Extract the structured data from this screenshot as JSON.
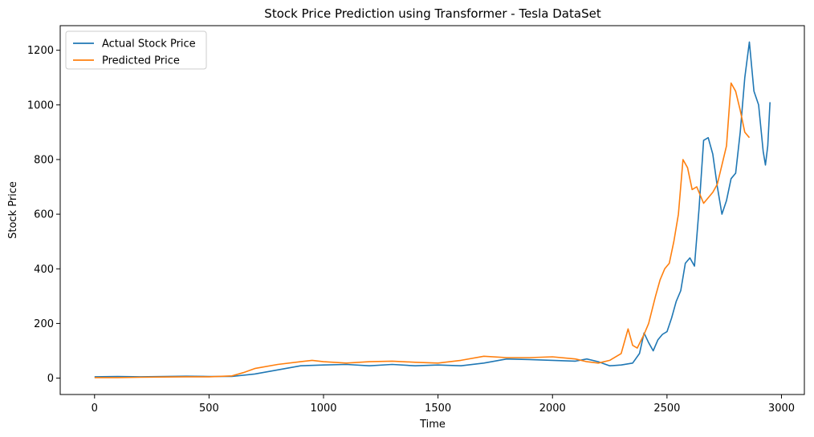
{
  "chart_data": {
    "type": "line",
    "title": "Stock Price Prediction using Transformer - Tesla DataSet",
    "xlabel": "Time",
    "ylabel": "Stock Price",
    "xlim": [
      -150,
      3100
    ],
    "ylim": [
      -60,
      1290
    ],
    "xticks": [
      0,
      500,
      1000,
      1500,
      2000,
      2500,
      3000
    ],
    "yticks": [
      0,
      200,
      400,
      600,
      800,
      1000,
      1200
    ],
    "grid": false,
    "legend_position": "top-left",
    "series": [
      {
        "name": "Actual Stock Price",
        "color": "#1f77b4",
        "points": [
          [
            0,
            5
          ],
          [
            100,
            6
          ],
          [
            200,
            5
          ],
          [
            300,
            6
          ],
          [
            400,
            7
          ],
          [
            500,
            6
          ],
          [
            600,
            6
          ],
          [
            700,
            15
          ],
          [
            800,
            30
          ],
          [
            900,
            45
          ],
          [
            1000,
            48
          ],
          [
            1100,
            50
          ],
          [
            1200,
            45
          ],
          [
            1300,
            50
          ],
          [
            1400,
            45
          ],
          [
            1500,
            48
          ],
          [
            1600,
            45
          ],
          [
            1700,
            55
          ],
          [
            1800,
            70
          ],
          [
            1900,
            68
          ],
          [
            2000,
            65
          ],
          [
            2100,
            62
          ],
          [
            2150,
            70
          ],
          [
            2200,
            60
          ],
          [
            2250,
            45
          ],
          [
            2300,
            48
          ],
          [
            2350,
            55
          ],
          [
            2380,
            90
          ],
          [
            2400,
            165
          ],
          [
            2420,
            130
          ],
          [
            2440,
            100
          ],
          [
            2460,
            140
          ],
          [
            2480,
            160
          ],
          [
            2500,
            170
          ],
          [
            2520,
            220
          ],
          [
            2540,
            280
          ],
          [
            2560,
            320
          ],
          [
            2580,
            420
          ],
          [
            2600,
            440
          ],
          [
            2620,
            410
          ],
          [
            2640,
            620
          ],
          [
            2660,
            870
          ],
          [
            2680,
            880
          ],
          [
            2700,
            820
          ],
          [
            2720,
            700
          ],
          [
            2740,
            600
          ],
          [
            2760,
            650
          ],
          [
            2780,
            730
          ],
          [
            2800,
            750
          ],
          [
            2820,
            900
          ],
          [
            2840,
            1100
          ],
          [
            2860,
            1230
          ],
          [
            2880,
            1050
          ],
          [
            2900,
            1000
          ],
          [
            2920,
            830
          ],
          [
            2930,
            780
          ],
          [
            2940,
            850
          ],
          [
            2950,
            1010
          ]
        ]
      },
      {
        "name": "Predicted Price",
        "color": "#ff7f0e",
        "points": [
          [
            0,
            2
          ],
          [
            100,
            2
          ],
          [
            200,
            3
          ],
          [
            300,
            4
          ],
          [
            400,
            5
          ],
          [
            500,
            5
          ],
          [
            600,
            8
          ],
          [
            650,
            20
          ],
          [
            700,
            35
          ],
          [
            800,
            50
          ],
          [
            900,
            60
          ],
          [
            950,
            65
          ],
          [
            1000,
            60
          ],
          [
            1100,
            55
          ],
          [
            1200,
            60
          ],
          [
            1300,
            62
          ],
          [
            1400,
            58
          ],
          [
            1500,
            55
          ],
          [
            1600,
            65
          ],
          [
            1700,
            80
          ],
          [
            1800,
            75
          ],
          [
            1900,
            75
          ],
          [
            2000,
            78
          ],
          [
            2100,
            70
          ],
          [
            2150,
            60
          ],
          [
            2200,
            55
          ],
          [
            2250,
            65
          ],
          [
            2300,
            90
          ],
          [
            2330,
            180
          ],
          [
            2350,
            120
          ],
          [
            2370,
            110
          ],
          [
            2400,
            160
          ],
          [
            2420,
            200
          ],
          [
            2450,
            300
          ],
          [
            2470,
            360
          ],
          [
            2490,
            400
          ],
          [
            2510,
            420
          ],
          [
            2530,
            500
          ],
          [
            2550,
            600
          ],
          [
            2570,
            800
          ],
          [
            2590,
            770
          ],
          [
            2610,
            690
          ],
          [
            2630,
            700
          ],
          [
            2660,
            640
          ],
          [
            2700,
            680
          ],
          [
            2720,
            710
          ],
          [
            2740,
            780
          ],
          [
            2760,
            850
          ],
          [
            2780,
            1080
          ],
          [
            2800,
            1050
          ],
          [
            2820,
            980
          ],
          [
            2840,
            900
          ],
          [
            2860,
            880
          ]
        ]
      }
    ]
  }
}
